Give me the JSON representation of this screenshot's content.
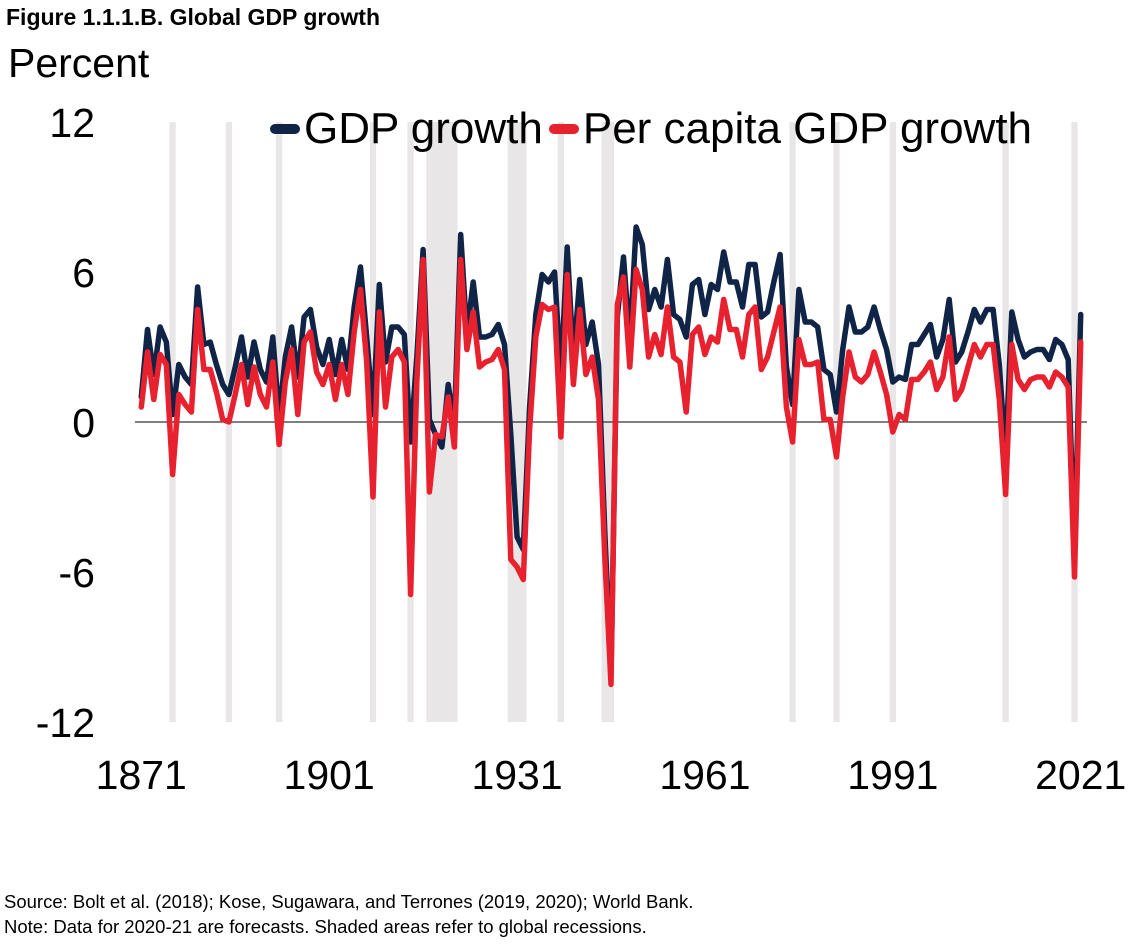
{
  "figure_label": "Figure 1.1.1.B. Global GDP growth",
  "unit_label": "Percent",
  "source_text": "Source: Bolt et al. (2018); Kose, Sugawara, and Terrones (2019, 2020); World Bank.",
  "note_text": "Note: Data for 2020-21 are forecasts. Shaded areas refer to global recessions.",
  "colors": {
    "gdp": "#0f2447",
    "per_capita": "#e8212f",
    "recession": "#e8e6e6",
    "zero_line": "#000000"
  },
  "chart_data": {
    "type": "line",
    "title": "Figure 1.1.1.B. Global GDP growth",
    "ylabel": "Percent",
    "xlabel": "",
    "ylim": [
      -12,
      12
    ],
    "xlim": [
      1870,
      2022
    ],
    "y_ticks": [
      12,
      6,
      0,
      -6,
      -12
    ],
    "y_tick_labels": [
      "12",
      "6",
      "0",
      "-6",
      "-12"
    ],
    "x_ticks": [
      1871,
      1901,
      1931,
      1961,
      1991,
      2021
    ],
    "x_tick_labels": [
      "1871",
      "1901",
      "1931",
      "1961",
      "1991",
      "2021"
    ],
    "legend": [
      "GDP growth",
      "Per capita GDP growth"
    ],
    "legend_position": "top",
    "recessions": [
      [
        1876,
        1876
      ],
      [
        1885,
        1885
      ],
      [
        1893,
        1893
      ],
      [
        1908,
        1908
      ],
      [
        1914,
        1914
      ],
      [
        1917,
        1921
      ],
      [
        1930,
        1932
      ],
      [
        1938,
        1938
      ],
      [
        1945,
        1946
      ],
      [
        1975,
        1975
      ],
      [
        1982,
        1982
      ],
      [
        1991,
        1991
      ],
      [
        2009,
        2009
      ],
      [
        2020,
        2020
      ]
    ],
    "series": [
      {
        "name": "GDP growth",
        "x": [
          1871,
          1872,
          1873,
          1874,
          1875,
          1876,
          1877,
          1878,
          1879,
          1880,
          1881,
          1882,
          1883,
          1884,
          1885,
          1886,
          1887,
          1888,
          1889,
          1890,
          1891,
          1892,
          1893,
          1894,
          1895,
          1896,
          1897,
          1898,
          1899,
          1900,
          1901,
          1902,
          1903,
          1904,
          1905,
          1906,
          1907,
          1908,
          1909,
          1910,
          1911,
          1912,
          1913,
          1914,
          1915,
          1916,
          1917,
          1918,
          1919,
          1920,
          1921,
          1922,
          1923,
          1924,
          1925,
          1926,
          1927,
          1928,
          1929,
          1930,
          1931,
          1932,
          1933,
          1934,
          1935,
          1936,
          1937,
          1938,
          1939,
          1940,
          1941,
          1942,
          1943,
          1944,
          1945,
          1946,
          1947,
          1948,
          1949,
          1950,
          1951,
          1952,
          1953,
          1954,
          1955,
          1956,
          1957,
          1958,
          1959,
          1960,
          1961,
          1962,
          1963,
          1964,
          1965,
          1966,
          1967,
          1968,
          1969,
          1970,
          1971,
          1972,
          1973,
          1974,
          1975,
          1976,
          1977,
          1978,
          1979,
          1980,
          1981,
          1982,
          1983,
          1984,
          1985,
          1986,
          1987,
          1988,
          1989,
          1990,
          1991,
          1992,
          1993,
          1994,
          1995,
          1996,
          1997,
          1998,
          1999,
          2000,
          2001,
          2002,
          2003,
          2004,
          2005,
          2006,
          2007,
          2008,
          2009,
          2010,
          2011,
          2012,
          2013,
          2014,
          2015,
          2016,
          2017,
          2018,
          2019,
          2020,
          2021
        ],
        "values": [
          1.0,
          3.7,
          1.9,
          3.8,
          3.2,
          0.3,
          2.3,
          1.8,
          1.5,
          5.4,
          3.1,
          3.2,
          2.3,
          1.5,
          1.1,
          2.2,
          3.4,
          1.8,
          3.2,
          2.1,
          1.6,
          3.4,
          0.2,
          2.6,
          3.8,
          1.8,
          4.2,
          4.5,
          3.0,
          2.3,
          3.3,
          1.9,
          3.3,
          2.1,
          4.6,
          6.2,
          3.4,
          0.3,
          5.5,
          2.4,
          3.8,
          3.8,
          3.5,
          -0.8,
          2.6,
          6.9,
          0.1,
          -0.5,
          -1.0,
          1.5,
          -0.1,
          7.5,
          3.5,
          5.6,
          3.4,
          3.4,
          3.5,
          3.9,
          3.1,
          -0.5,
          -4.6,
          -5.1,
          0.6,
          4.3,
          5.9,
          5.6,
          6.0,
          1.8,
          7.0,
          2.5,
          5.7,
          3.1,
          4.0,
          2.3,
          -4.3,
          -10.1,
          4.2,
          6.6,
          3.2,
          7.8,
          7.1,
          4.5,
          5.3,
          4.6,
          6.5,
          4.3,
          4.1,
          3.4,
          5.5,
          5.7,
          4.3,
          5.5,
          5.3,
          6.8,
          5.6,
          5.6,
          4.6,
          6.3,
          6.3,
          4.2,
          4.4,
          5.6,
          6.7,
          2.2,
          0.7,
          5.3,
          4.0,
          4.0,
          3.8,
          2.1,
          1.9,
          0.4,
          2.9,
          4.6,
          3.6,
          3.6,
          3.8,
          4.6,
          3.7,
          2.9,
          1.6,
          1.8,
          1.7,
          3.1,
          3.1,
          3.5,
          3.9,
          2.6,
          3.3,
          4.9,
          2.4,
          2.8,
          3.6,
          4.5,
          4.0,
          4.5,
          4.5,
          2.3,
          -1.4,
          4.4,
          3.3,
          2.6,
          2.8,
          2.9,
          2.9,
          2.5,
          3.3,
          3.1,
          2.5,
          -5.2,
          4.3
        ]
      },
      {
        "name": "Per capita GDP growth",
        "x": [
          1871,
          1872,
          1873,
          1874,
          1875,
          1876,
          1877,
          1878,
          1879,
          1880,
          1881,
          1882,
          1883,
          1884,
          1885,
          1886,
          1887,
          1888,
          1889,
          1890,
          1891,
          1892,
          1893,
          1894,
          1895,
          1896,
          1897,
          1898,
          1899,
          1900,
          1901,
          1902,
          1903,
          1904,
          1905,
          1906,
          1907,
          1908,
          1909,
          1910,
          1911,
          1912,
          1913,
          1914,
          1915,
          1916,
          1917,
          1918,
          1919,
          1920,
          1921,
          1922,
          1923,
          1924,
          1925,
          1926,
          1927,
          1928,
          1929,
          1930,
          1931,
          1932,
          1933,
          1934,
          1935,
          1936,
          1937,
          1938,
          1939,
          1940,
          1941,
          1942,
          1943,
          1944,
          1945,
          1946,
          1947,
          1948,
          1949,
          1950,
          1951,
          1952,
          1953,
          1954,
          1955,
          1956,
          1957,
          1958,
          1959,
          1960,
          1961,
          1962,
          1963,
          1964,
          1965,
          1966,
          1967,
          1968,
          1969,
          1970,
          1971,
          1972,
          1973,
          1974,
          1975,
          1976,
          1977,
          1978,
          1979,
          1980,
          1981,
          1982,
          1983,
          1984,
          1985,
          1986,
          1987,
          1988,
          1989,
          1990,
          1991,
          1992,
          1993,
          1994,
          1995,
          1996,
          1997,
          1998,
          1999,
          2000,
          2001,
          2002,
          2003,
          2004,
          2005,
          2006,
          2007,
          2008,
          2009,
          2010,
          2011,
          2012,
          2013,
          2014,
          2015,
          2016,
          2017,
          2018,
          2019,
          2020,
          2021
        ],
        "values": [
          0.6,
          2.8,
          0.9,
          2.7,
          2.3,
          -2.1,
          1.1,
          0.7,
          0.4,
          4.5,
          2.1,
          2.1,
          1.2,
          0.1,
          0.0,
          1.1,
          2.3,
          0.7,
          2.2,
          1.1,
          0.6,
          2.4,
          -0.9,
          1.6,
          2.9,
          0.3,
          3.2,
          3.6,
          2.0,
          1.5,
          2.3,
          0.9,
          2.3,
          1.1,
          3.6,
          5.3,
          2.4,
          -3.0,
          4.4,
          0.6,
          2.6,
          2.9,
          2.4,
          -6.9,
          1.6,
          6.5,
          -2.8,
          -0.5,
          -0.6,
          1.0,
          -1.0,
          6.5,
          2.9,
          4.4,
          2.2,
          2.4,
          2.5,
          2.9,
          2.1,
          -5.5,
          -5.8,
          -6.3,
          -0.3,
          3.4,
          4.7,
          4.5,
          4.6,
          -0.6,
          5.9,
          1.5,
          4.5,
          1.9,
          2.6,
          0.9,
          -5.3,
          -10.5,
          4.7,
          5.8,
          2.2,
          6.1,
          5.3,
          2.6,
          3.5,
          2.7,
          4.6,
          2.6,
          2.4,
          0.4,
          3.5,
          3.8,
          2.7,
          3.4,
          3.2,
          4.9,
          3.7,
          3.7,
          2.6,
          4.3,
          4.6,
          2.1,
          2.6,
          3.6,
          4.6,
          0.6,
          -0.8,
          3.3,
          2.3,
          2.3,
          2.4,
          0.1,
          0.1,
          -1.4,
          1.0,
          2.8,
          1.8,
          1.6,
          1.9,
          2.8,
          2.0,
          1.1,
          -0.4,
          0.3,
          0.1,
          1.7,
          1.7,
          2.0,
          2.4,
          1.3,
          1.8,
          3.4,
          0.9,
          1.3,
          2.2,
          3.1,
          2.6,
          3.1,
          3.1,
          0.9,
          -2.9,
          3.1,
          1.7,
          1.3,
          1.7,
          1.8,
          1.8,
          1.4,
          2.0,
          1.8,
          1.4,
          -6.2,
          3.2
        ]
      }
    ]
  }
}
